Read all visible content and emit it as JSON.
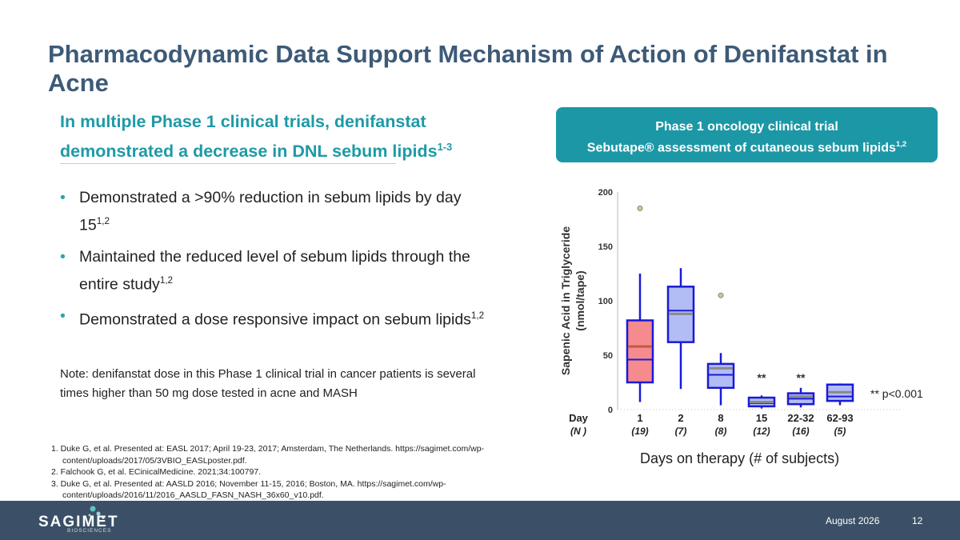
{
  "slide": {
    "title": "Pharmacodynamic Data Support Mechanism of Action of Denifanstat in Acne",
    "subtitle": "In multiple Phase 1 clinical trials, denifanstat demonstrated a decrease in DNL sebum lipids",
    "subtitle_sup": "1-3",
    "bullets": [
      {
        "text": "Demonstrated a >90% reduction in sebum lipids by day 15",
        "sup": "1,2"
      },
      {
        "text": "Maintained the reduced level of sebum lipids through the entire study",
        "sup": "1,2"
      },
      {
        "text": "Demonstrated a dose responsive impact on sebum lipids",
        "sup": "1,2"
      }
    ],
    "note": "Note: denifanstat dose in this Phase 1 clinical trial in cancer patients is several times higher than 50 mg dose tested in acne and MASH",
    "references": [
      "1. Duke G, et al. Presented at: EASL 2017; April 19-23, 2017; Amsterdam, The Netherlands. https://sagimet.com/wp-content/uploads/2017/05/3VBIO_EASLposter.pdf.",
      "2. Falchook G, et al. ECinicalMedicine. 2021;34:100797.",
      "3. Duke G, et al. Presented at: AASLD 2016; November 11-15, 2016; Boston, MA. https://sagimet.com/wp-content/uploads/2016/11/2016_AASLD_FASN_NASH_36x60_v10.pdf."
    ],
    "caption_line1": "Phase 1 oncology clinical trial",
    "caption_line2": "Sebutape® assessment of cutaneous sebum lipids",
    "caption_sup": "1,2",
    "days_label": "Days on therapy (# of subjects)",
    "footer": {
      "logo": "SAGIMET",
      "logo_sub": "BIOSCIENCES",
      "date": "August 2026",
      "page": "12"
    }
  },
  "colors": {
    "title": "#3d5a78",
    "teal": "#1c97a6",
    "box_first": "#f58a8f",
    "box_rest": "#b3bdf5",
    "box_stroke": "#1a1ad6",
    "median": "#8a8a8a",
    "footer": "#3b5066"
  },
  "chart_data": {
    "type": "box",
    "ylabel": "Sapenic Acid in Triglyceride (nmol/tape)",
    "ylim": [
      0,
      200
    ],
    "yticks": [
      0,
      50,
      100,
      150,
      200
    ],
    "row_header_day": "Day",
    "row_header_n": "(N )",
    "categories": [
      "1",
      "2",
      "8",
      "15",
      "22-32",
      "62-93"
    ],
    "n": [
      "(19)",
      "(7)",
      "(8)",
      "(12)",
      "(16)",
      "(5)"
    ],
    "boxes": [
      {
        "min": 7,
        "q1": 25,
        "median": 46,
        "q3": 82,
        "max": 125,
        "mean": 58,
        "outliers": [
          185
        ]
      },
      {
        "min": 19,
        "q1": 62,
        "median": 91,
        "q3": 113,
        "max": 130,
        "mean": 88,
        "outliers": []
      },
      {
        "min": 4,
        "q1": 20,
        "median": 32,
        "q3": 42,
        "max": 52,
        "mean": 38,
        "outliers": [
          105
        ]
      },
      {
        "min": 1,
        "q1": 3,
        "median": 6,
        "q3": 11,
        "max": 13,
        "mean": 7,
        "outliers": []
      },
      {
        "min": 2,
        "q1": 5,
        "median": 10,
        "q3": 15,
        "max": 20,
        "mean": 12,
        "outliers": []
      },
      {
        "min": 4,
        "q1": 8,
        "median": 12,
        "q3": 23,
        "max": 24,
        "mean": 16,
        "outliers": []
      }
    ],
    "significance_marker": "**",
    "significant_categories": [
      "15",
      "22-32"
    ],
    "significance_legend": "** p<0.001"
  }
}
